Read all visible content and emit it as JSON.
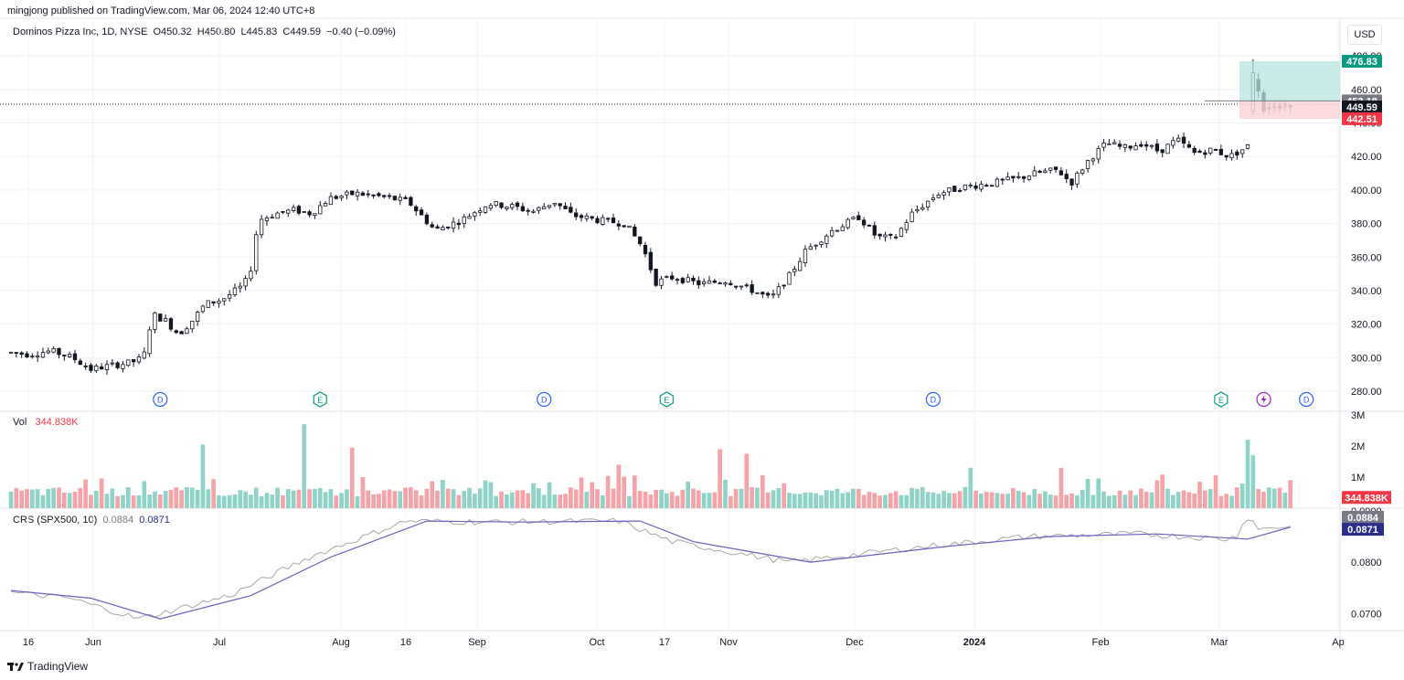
{
  "header": {
    "publisher_line": "mingjong published on TradingView.com, Mar 06, 2024 12:40 UTC+8",
    "symbol_line": "Dominos Pizza Inc, 1D, NYSE",
    "open": "O450.32",
    "high": "H450.80",
    "low": "L445.83",
    "close": "C449.59",
    "change": "−0.40 (−0.09%)"
  },
  "currency_button": "USD",
  "volume_legend": {
    "label": "Vol",
    "value": "344.838K"
  },
  "crs_legend": {
    "label": "CRS (SPX500, 10)",
    "value_a": "0.0884",
    "value_b": "0.0871"
  },
  "footer_logo": "TradingView",
  "colors": {
    "up_volume": "#8fd3c8",
    "down_volume": "#f4a3a8",
    "candle_down": "#131722",
    "candle_up_fill": "#ffffff",
    "profit_zone": "#b7e4e0",
    "loss_zone": "#f9d6d8",
    "crs_line": "#a8a8a8",
    "crs_ma": "#6b5fbf",
    "target_badge": "#089981",
    "stop_badge": "#f23645",
    "earnings_marker": "#089981",
    "dividend_marker": "#2962ff",
    "split_marker": "#9c27b0"
  },
  "chart_data": {
    "type": "candlestick",
    "price_axis": {
      "ticks": [
        "280.00",
        "300.00",
        "320.00",
        "340.00",
        "360.00",
        "380.00",
        "400.00",
        "420.00",
        "440.00",
        "460.00",
        "480.00"
      ],
      "range": [
        268,
        485
      ]
    },
    "time_axis": {
      "labels": [
        "16",
        "Jun",
        "Jul",
        "Aug",
        "16",
        "Sep",
        "Oct",
        "17",
        "Nov",
        "Dec",
        "2024",
        "Feb",
        "Mar",
        "Ap"
      ]
    },
    "price_badges": [
      {
        "label": "476.83",
        "kind": "target"
      },
      {
        "label": "453.18",
        "kind": "entry"
      },
      {
        "label": "449.59",
        "kind": "last"
      },
      {
        "label": "442.51",
        "kind": "stop"
      }
    ],
    "position_tool": {
      "target": 476.83,
      "entry": 453.18,
      "stop": 442.51
    },
    "event_markers": [
      {
        "kind": "D",
        "bar": 28
      },
      {
        "kind": "E",
        "bar": 58
      },
      {
        "kind": "D",
        "bar": 100
      },
      {
        "kind": "E",
        "bar": 123
      },
      {
        "kind": "D",
        "bar": 173
      },
      {
        "kind": "E",
        "bar": 227
      },
      {
        "kind": "S",
        "bar": 235
      },
      {
        "kind": "D",
        "bar": 243
      }
    ],
    "volume_axis": {
      "ticks": [
        "1M",
        "2M",
        "3M"
      ],
      "range": [
        0,
        3000000
      ],
      "last_label": "344.838K"
    },
    "crs_axis": {
      "ticks": [
        "0.0700",
        "0.0800",
        "0.0900"
      ],
      "range": [
        0.0667,
        0.0905
      ],
      "badges": [
        "0.0884",
        "0.0871"
      ]
    },
    "crs_ma_path": [
      [
        0,
        0.0745
      ],
      [
        15,
        0.073
      ],
      [
        28,
        0.069
      ],
      [
        45,
        0.0735
      ],
      [
        60,
        0.081
      ],
      [
        78,
        0.088
      ],
      [
        95,
        0.0878
      ],
      [
        118,
        0.088
      ],
      [
        128,
        0.084
      ],
      [
        150,
        0.08
      ],
      [
        175,
        0.083
      ],
      [
        195,
        0.085
      ],
      [
        215,
        0.0855
      ],
      [
        232,
        0.0845
      ],
      [
        240,
        0.0868
      ]
    ]
  }
}
